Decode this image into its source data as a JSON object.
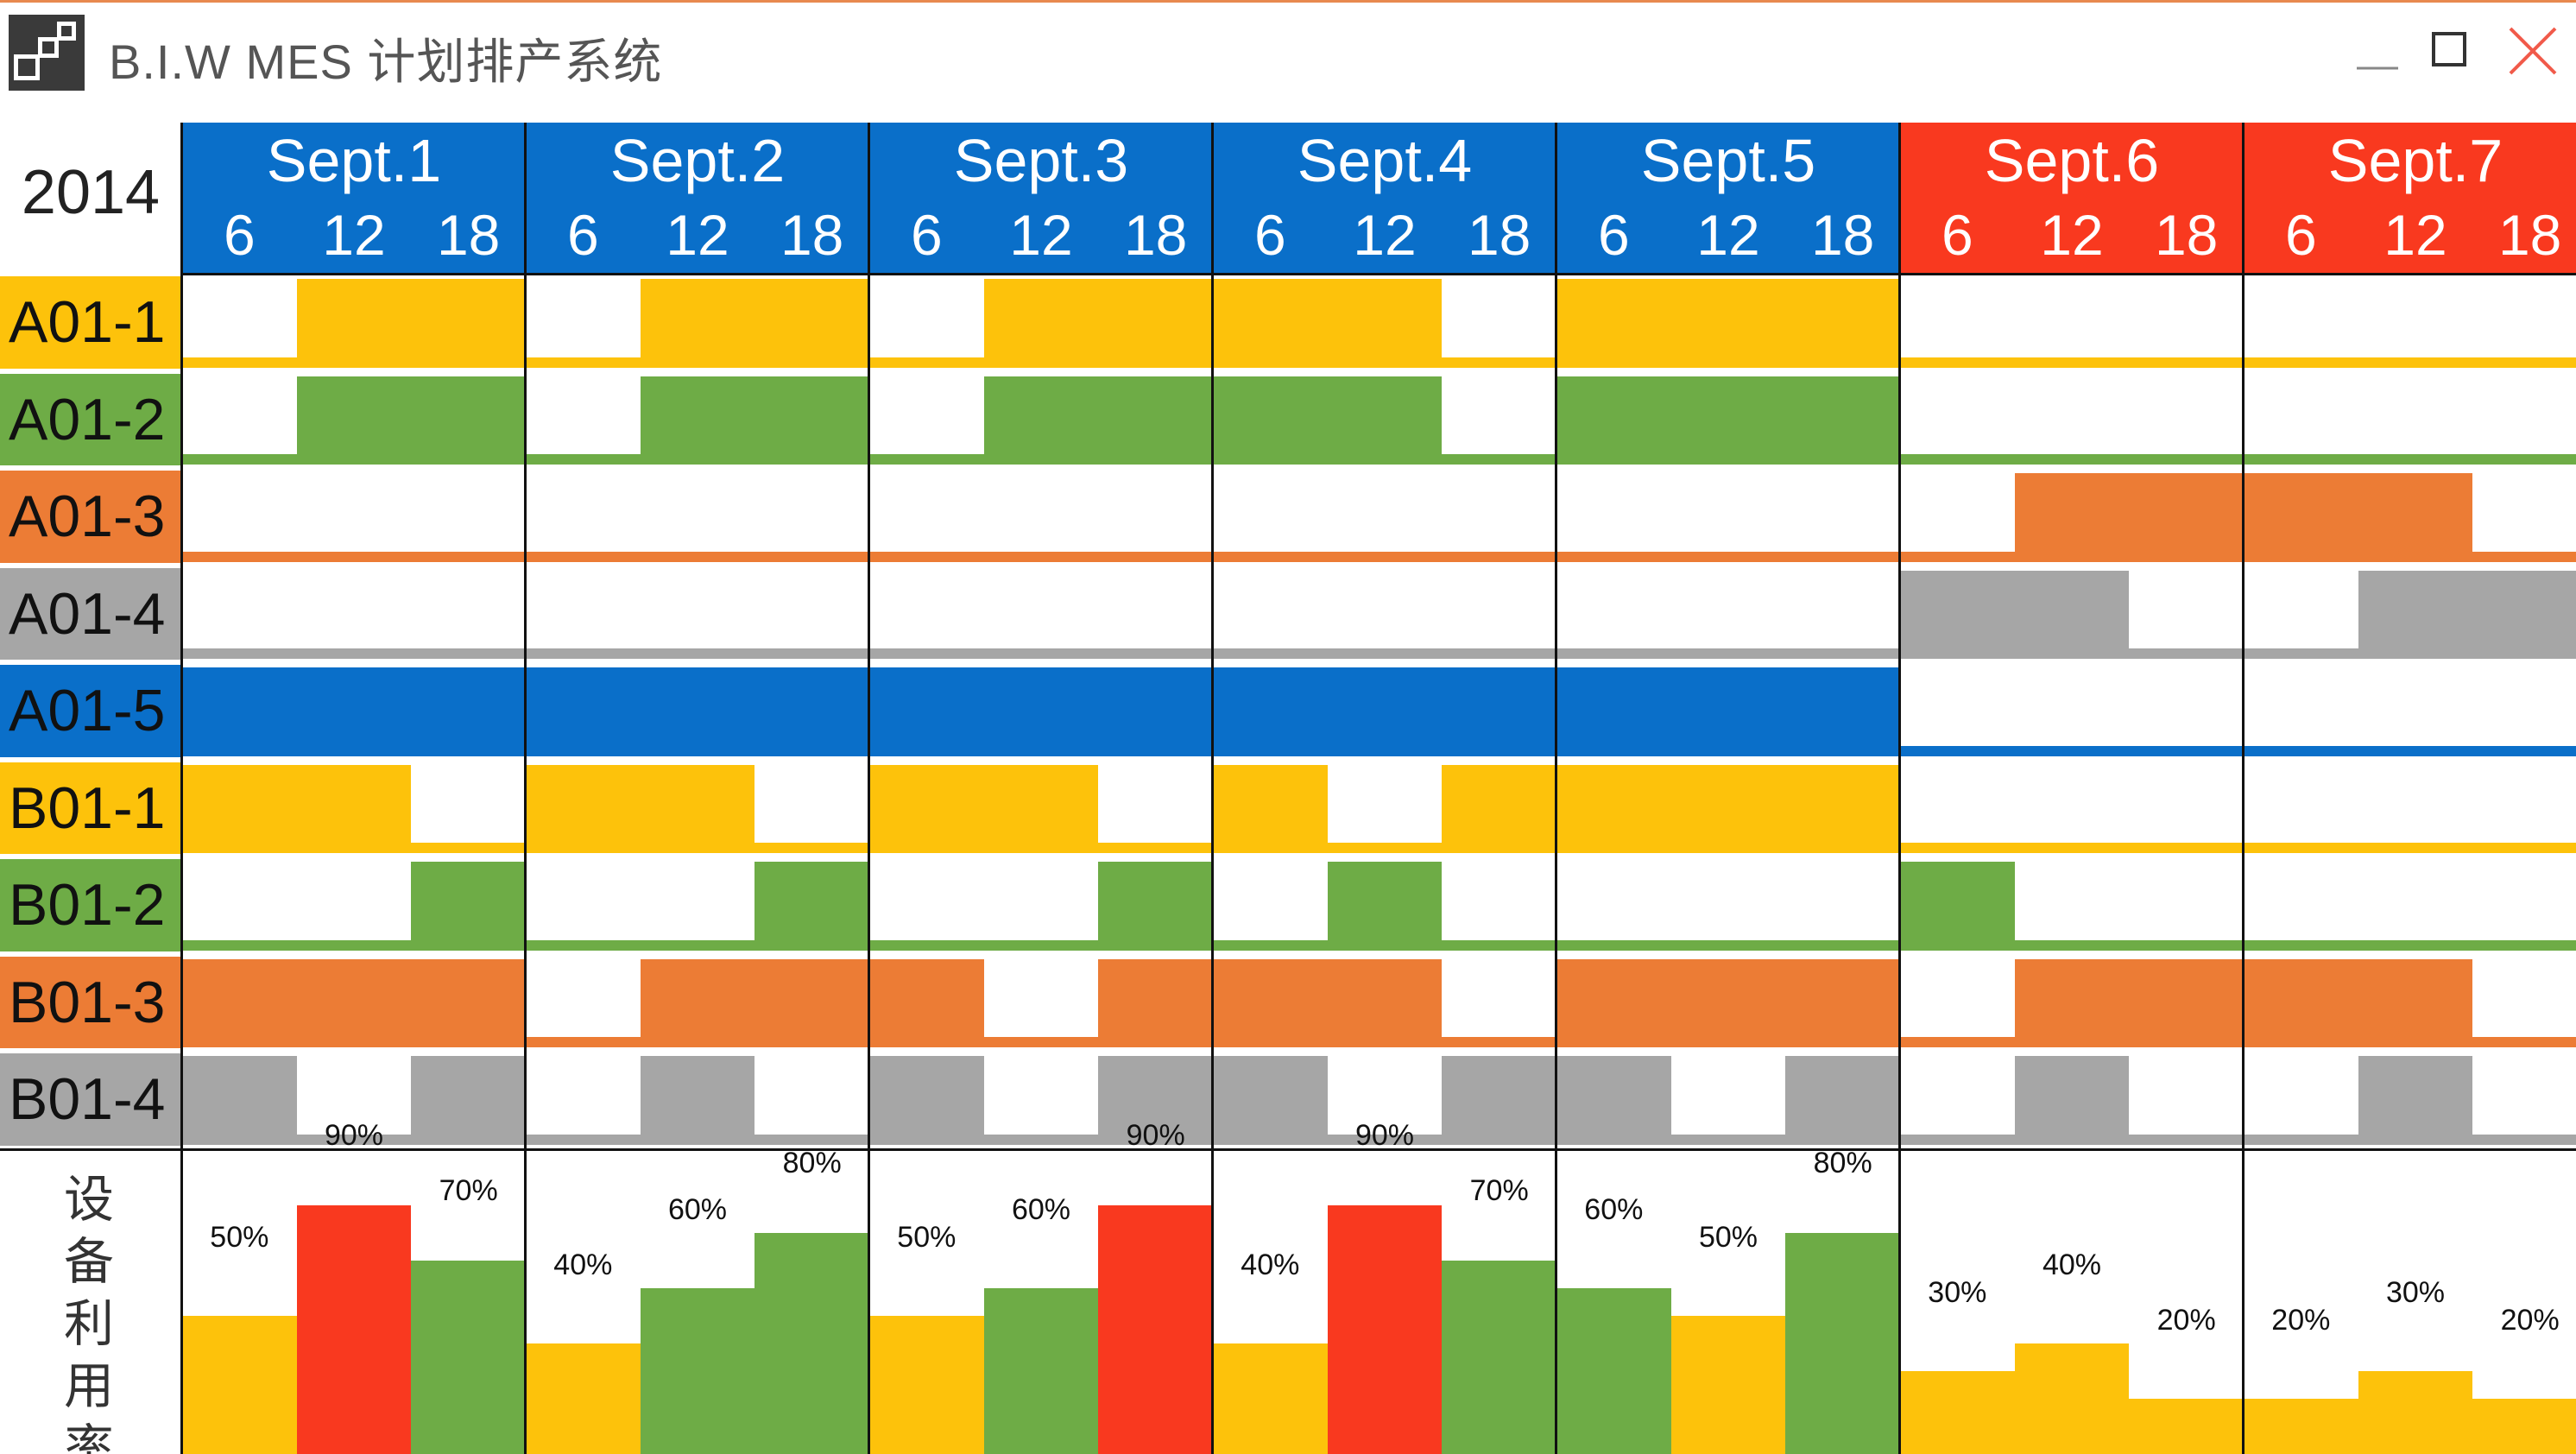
{
  "window": {
    "title": "B.I.W MES 计划排产系统",
    "controls": [
      {
        "name": "minimize-button",
        "icon": "minimize-icon"
      },
      {
        "name": "maximize-button",
        "icon": "maximize-icon"
      },
      {
        "name": "close-button",
        "icon": "close-icon"
      }
    ]
  },
  "schedule": {
    "year": "2014",
    "days": [
      {
        "label": "Sept.1",
        "weekend": false
      },
      {
        "label": "Sept.2",
        "weekend": false
      },
      {
        "label": "Sept.3",
        "weekend": false
      },
      {
        "label": "Sept.4",
        "weekend": false
      },
      {
        "label": "Sept.5",
        "weekend": false
      },
      {
        "label": "Sept.6",
        "weekend": true
      },
      {
        "label": "Sept.7",
        "weekend": true
      }
    ],
    "hour_ticks": [
      "6",
      "12",
      "18"
    ],
    "colors": {
      "weekday_header": "#0a6fc9",
      "weekend_header": "#f9391f",
      "yellow": "#fdc20b",
      "green": "#6eac46",
      "orange": "#ec7c35",
      "gray": "#a6a6a6",
      "blue": "#0a6fc9",
      "red": "#f9391f"
    },
    "resources": [
      {
        "label": "A01-1",
        "color": "yellow",
        "blocks": [
          [
            1,
            3
          ],
          [
            4,
            6
          ],
          [
            7,
            9
          ],
          [
            9,
            11
          ],
          [
            12,
            15
          ]
        ]
      },
      {
        "label": "A01-2",
        "color": "green",
        "blocks": [
          [
            1,
            3
          ],
          [
            4,
            6
          ],
          [
            7,
            9
          ],
          [
            9,
            11
          ],
          [
            12,
            15
          ]
        ]
      },
      {
        "label": "A01-3",
        "color": "orange",
        "blocks": [
          [
            16,
            20
          ]
        ]
      },
      {
        "label": "A01-4",
        "color": "gray",
        "blocks": [
          [
            15,
            17
          ],
          [
            19,
            21
          ]
        ]
      },
      {
        "label": "A01-5",
        "color": "blue",
        "blocks": [
          [
            0,
            15
          ]
        ]
      },
      {
        "label": "B01-1",
        "color": "yellow",
        "blocks": [
          [
            0,
            2
          ],
          [
            3,
            5
          ],
          [
            6,
            8
          ],
          [
            9,
            10
          ],
          [
            11,
            15
          ]
        ]
      },
      {
        "label": "B01-2",
        "color": "green",
        "blocks": [
          [
            2,
            3
          ],
          [
            5,
            6
          ],
          [
            8,
            9
          ],
          [
            10,
            11
          ],
          [
            15,
            16
          ]
        ]
      },
      {
        "label": "B01-3",
        "color": "orange",
        "blocks": [
          [
            0,
            3
          ],
          [
            4,
            6
          ],
          [
            6,
            7
          ],
          [
            8,
            11
          ],
          [
            12,
            15
          ],
          [
            16,
            18
          ],
          [
            18,
            20
          ]
        ]
      },
      {
        "label": "B01-4",
        "color": "gray",
        "blocks": [
          [
            0,
            1
          ],
          [
            2,
            3
          ],
          [
            4,
            5
          ],
          [
            6,
            7
          ],
          [
            8,
            10
          ],
          [
            11,
            12
          ],
          [
            12,
            13
          ],
          [
            14,
            15
          ],
          [
            16,
            17
          ],
          [
            19,
            20
          ]
        ]
      }
    ],
    "utilization": {
      "label": "设备利用率",
      "values": [
        50,
        90,
        70,
        40,
        60,
        80,
        50,
        60,
        90,
        40,
        90,
        70,
        60,
        50,
        80,
        30,
        40,
        20,
        20,
        30,
        20
      ],
      "labels": [
        "50%",
        "90%",
        "70%",
        "40%",
        "60%",
        "80%",
        "50%",
        "60%",
        "90%",
        "40%",
        "90%",
        "70%",
        "60%",
        "50%",
        "80%",
        "30%",
        "40%",
        "20%",
        "20%",
        "30%",
        "20%"
      ],
      "colors": [
        "yellow",
        "red",
        "green",
        "yellow",
        "green",
        "green",
        "yellow",
        "green",
        "red",
        "yellow",
        "red",
        "green",
        "green",
        "yellow",
        "green",
        "yellow",
        "yellow",
        "yellow",
        "yellow",
        "yellow",
        "yellow"
      ]
    }
  }
}
